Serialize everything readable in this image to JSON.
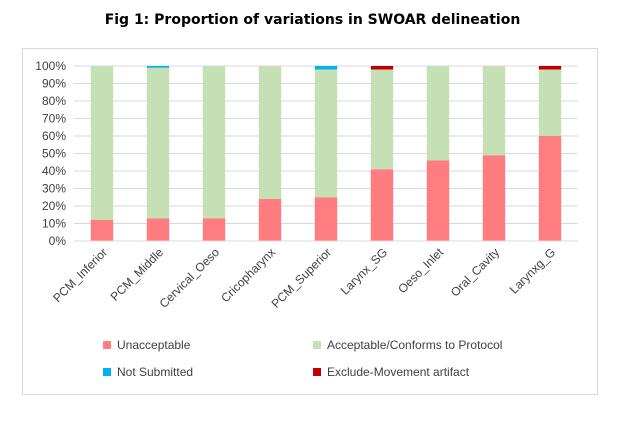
{
  "chart_data": {
    "type": "bar",
    "stacked": true,
    "percent": true,
    "title": "Fig 1: Proportion of variations in SWOAR delineation",
    "xlabel": "",
    "ylabel": "",
    "ylim": [
      0,
      100
    ],
    "yticks": [
      "0%",
      "10%",
      "20%",
      "30%",
      "40%",
      "50%",
      "60%",
      "70%",
      "80%",
      "90%",
      "100%"
    ],
    "grid": true,
    "legend_position": "bottom",
    "categories": [
      "PCM_Inferior",
      "PCM_Middle",
      "Cervical_Oeso",
      "Cricopharynx",
      "PCM_Superior",
      "Larynx_SG",
      "Oeso_Inlet",
      "Oral_Cavity",
      "Larynxg_G"
    ],
    "series": [
      {
        "name": "Unacceptable",
        "color": "#ff7c80",
        "values": [
          12,
          13,
          13,
          24,
          25,
          41,
          46,
          49,
          60
        ]
      },
      {
        "name": "Acceptable/Conforms to Protocol",
        "color": "#c5e0b4",
        "values": [
          88,
          86,
          87,
          76,
          73,
          57,
          54,
          51,
          38
        ]
      },
      {
        "name": "Not Submitted",
        "color": "#00b0f0",
        "values": [
          0,
          1,
          0,
          0,
          2,
          0,
          0,
          0,
          0
        ]
      },
      {
        "name": "Exclude-Movement artifact",
        "color": "#c00000",
        "values": [
          0,
          0,
          0,
          0,
          0,
          2,
          0,
          0,
          2
        ]
      }
    ],
    "legend_order": [
      0,
      1,
      2,
      3
    ]
  }
}
